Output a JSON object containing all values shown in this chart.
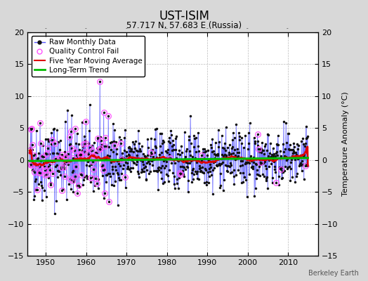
{
  "title": "UST-ISIM",
  "subtitle": "57.717 N, 57.683 E (Russia)",
  "ylabel_right": "Temperature Anomaly (°C)",
  "attribution": "Berkeley Earth",
  "xlim": [
    1945.5,
    2017.5
  ],
  "ylim_left": [
    -15,
    20
  ],
  "ylim_right": [
    -15,
    20
  ],
  "yticks_left": [
    -15,
    -10,
    -5,
    0,
    5,
    10,
    15,
    20
  ],
  "yticks_right": [
    -15,
    -10,
    -5,
    0,
    5,
    10,
    15,
    20
  ],
  "xticks": [
    1950,
    1960,
    1970,
    1980,
    1990,
    2000,
    2010
  ],
  "seed": 42,
  "start_year": 1946,
  "end_year": 2015,
  "raw_color": "#5555ff",
  "dot_color": "#111111",
  "qc_color": "#ff55ff",
  "moving_avg_color": "#dd0000",
  "trend_color": "#00bb00",
  "background_color": "#d8d8d8",
  "plot_bg_color": "#ffffff",
  "grid_color": "#bbbbbb",
  "legend_fontsize": 7.5,
  "title_fontsize": 12,
  "subtitle_fontsize": 8.5,
  "axis_fontsize": 8,
  "attribution_fontsize": 7
}
